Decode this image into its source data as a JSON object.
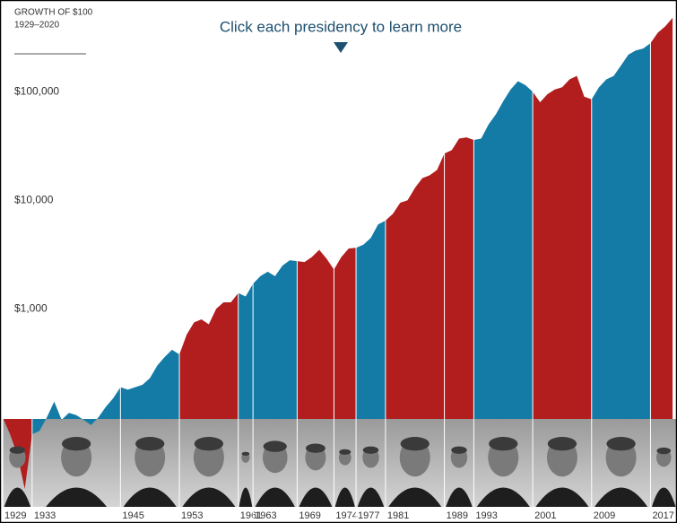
{
  "chart_data": {
    "type": "area",
    "title": "GROWTH OF $100",
    "subtitle": "1929–2020",
    "annotation": "Click each presidency to learn more",
    "log_scale": true,
    "grid": false,
    "x": [
      1929,
      1930,
      1931,
      1932,
      1933,
      1934,
      1935,
      1936,
      1937,
      1938,
      1939,
      1940,
      1941,
      1942,
      1943,
      1944,
      1945,
      1946,
      1947,
      1948,
      1949,
      1950,
      1951,
      1952,
      1953,
      1954,
      1955,
      1956,
      1957,
      1958,
      1959,
      1960,
      1961,
      1962,
      1963,
      1964,
      1965,
      1966,
      1967,
      1968,
      1969,
      1970,
      1971,
      1972,
      1973,
      1974,
      1975,
      1976,
      1977,
      1978,
      1979,
      1980,
      1981,
      1982,
      1983,
      1984,
      1985,
      1986,
      1987,
      1988,
      1989,
      1990,
      1991,
      1992,
      1993,
      1994,
      1995,
      1996,
      1997,
      1998,
      1999,
      2000,
      2001,
      2002,
      2003,
      2004,
      2005,
      2006,
      2007,
      2008,
      2009,
      2010,
      2011,
      2012,
      2013,
      2014,
      2015,
      2016,
      2017,
      2018,
      2019,
      2020
    ],
    "values": [
      100,
      70,
      45,
      22,
      70,
      75,
      100,
      140,
      95,
      110,
      105,
      95,
      85,
      100,
      125,
      150,
      190,
      180,
      190,
      200,
      230,
      300,
      360,
      420,
      380,
      580,
      750,
      800,
      720,
      1000,
      1150,
      1150,
      1400,
      1300,
      1700,
      2000,
      2200,
      2000,
      2500,
      2800,
      2750,
      2700,
      3000,
      3500,
      2900,
      2300,
      3000,
      3600,
      3650,
      3900,
      4500,
      6000,
      6500,
      7500,
      9500,
      10000,
      13000,
      16000,
      17000,
      19000,
      27000,
      29000,
      37000,
      38000,
      36000,
      37000,
      50000,
      62000,
      82000,
      105000,
      125000,
      115000,
      100000,
      80000,
      95000,
      105000,
      110000,
      130000,
      140000,
      90000,
      85000,
      110000,
      130000,
      140000,
      175000,
      220000,
      240000,
      250000,
      280000,
      350000,
      400000,
      480000
    ],
    "xlim": [
      1929,
      2020.6
    ],
    "xticks": [
      1929,
      1933,
      1945,
      1953,
      1961,
      1963,
      1969,
      1974,
      1977,
      1981,
      1989,
      1993,
      2001,
      2009,
      2017
    ],
    "period_colors": [
      "#b21e1e",
      "#137ba6",
      "#137ba6",
      "#b21e1e",
      "#137ba6",
      "#137ba6",
      "#b21e1e",
      "#b21e1e",
      "#137ba6",
      "#b21e1e",
      "#b21e1e",
      "#137ba6",
      "#b21e1e",
      "#137ba6",
      "#b21e1e"
    ],
    "ylim": [
      15,
      700000
    ],
    "yticks": [
      {
        "value": 1000,
        "label": "$1,000"
      },
      {
        "value": 10000,
        "label": "$10,000"
      },
      {
        "value": 100000,
        "label": "$100,000"
      }
    ]
  }
}
